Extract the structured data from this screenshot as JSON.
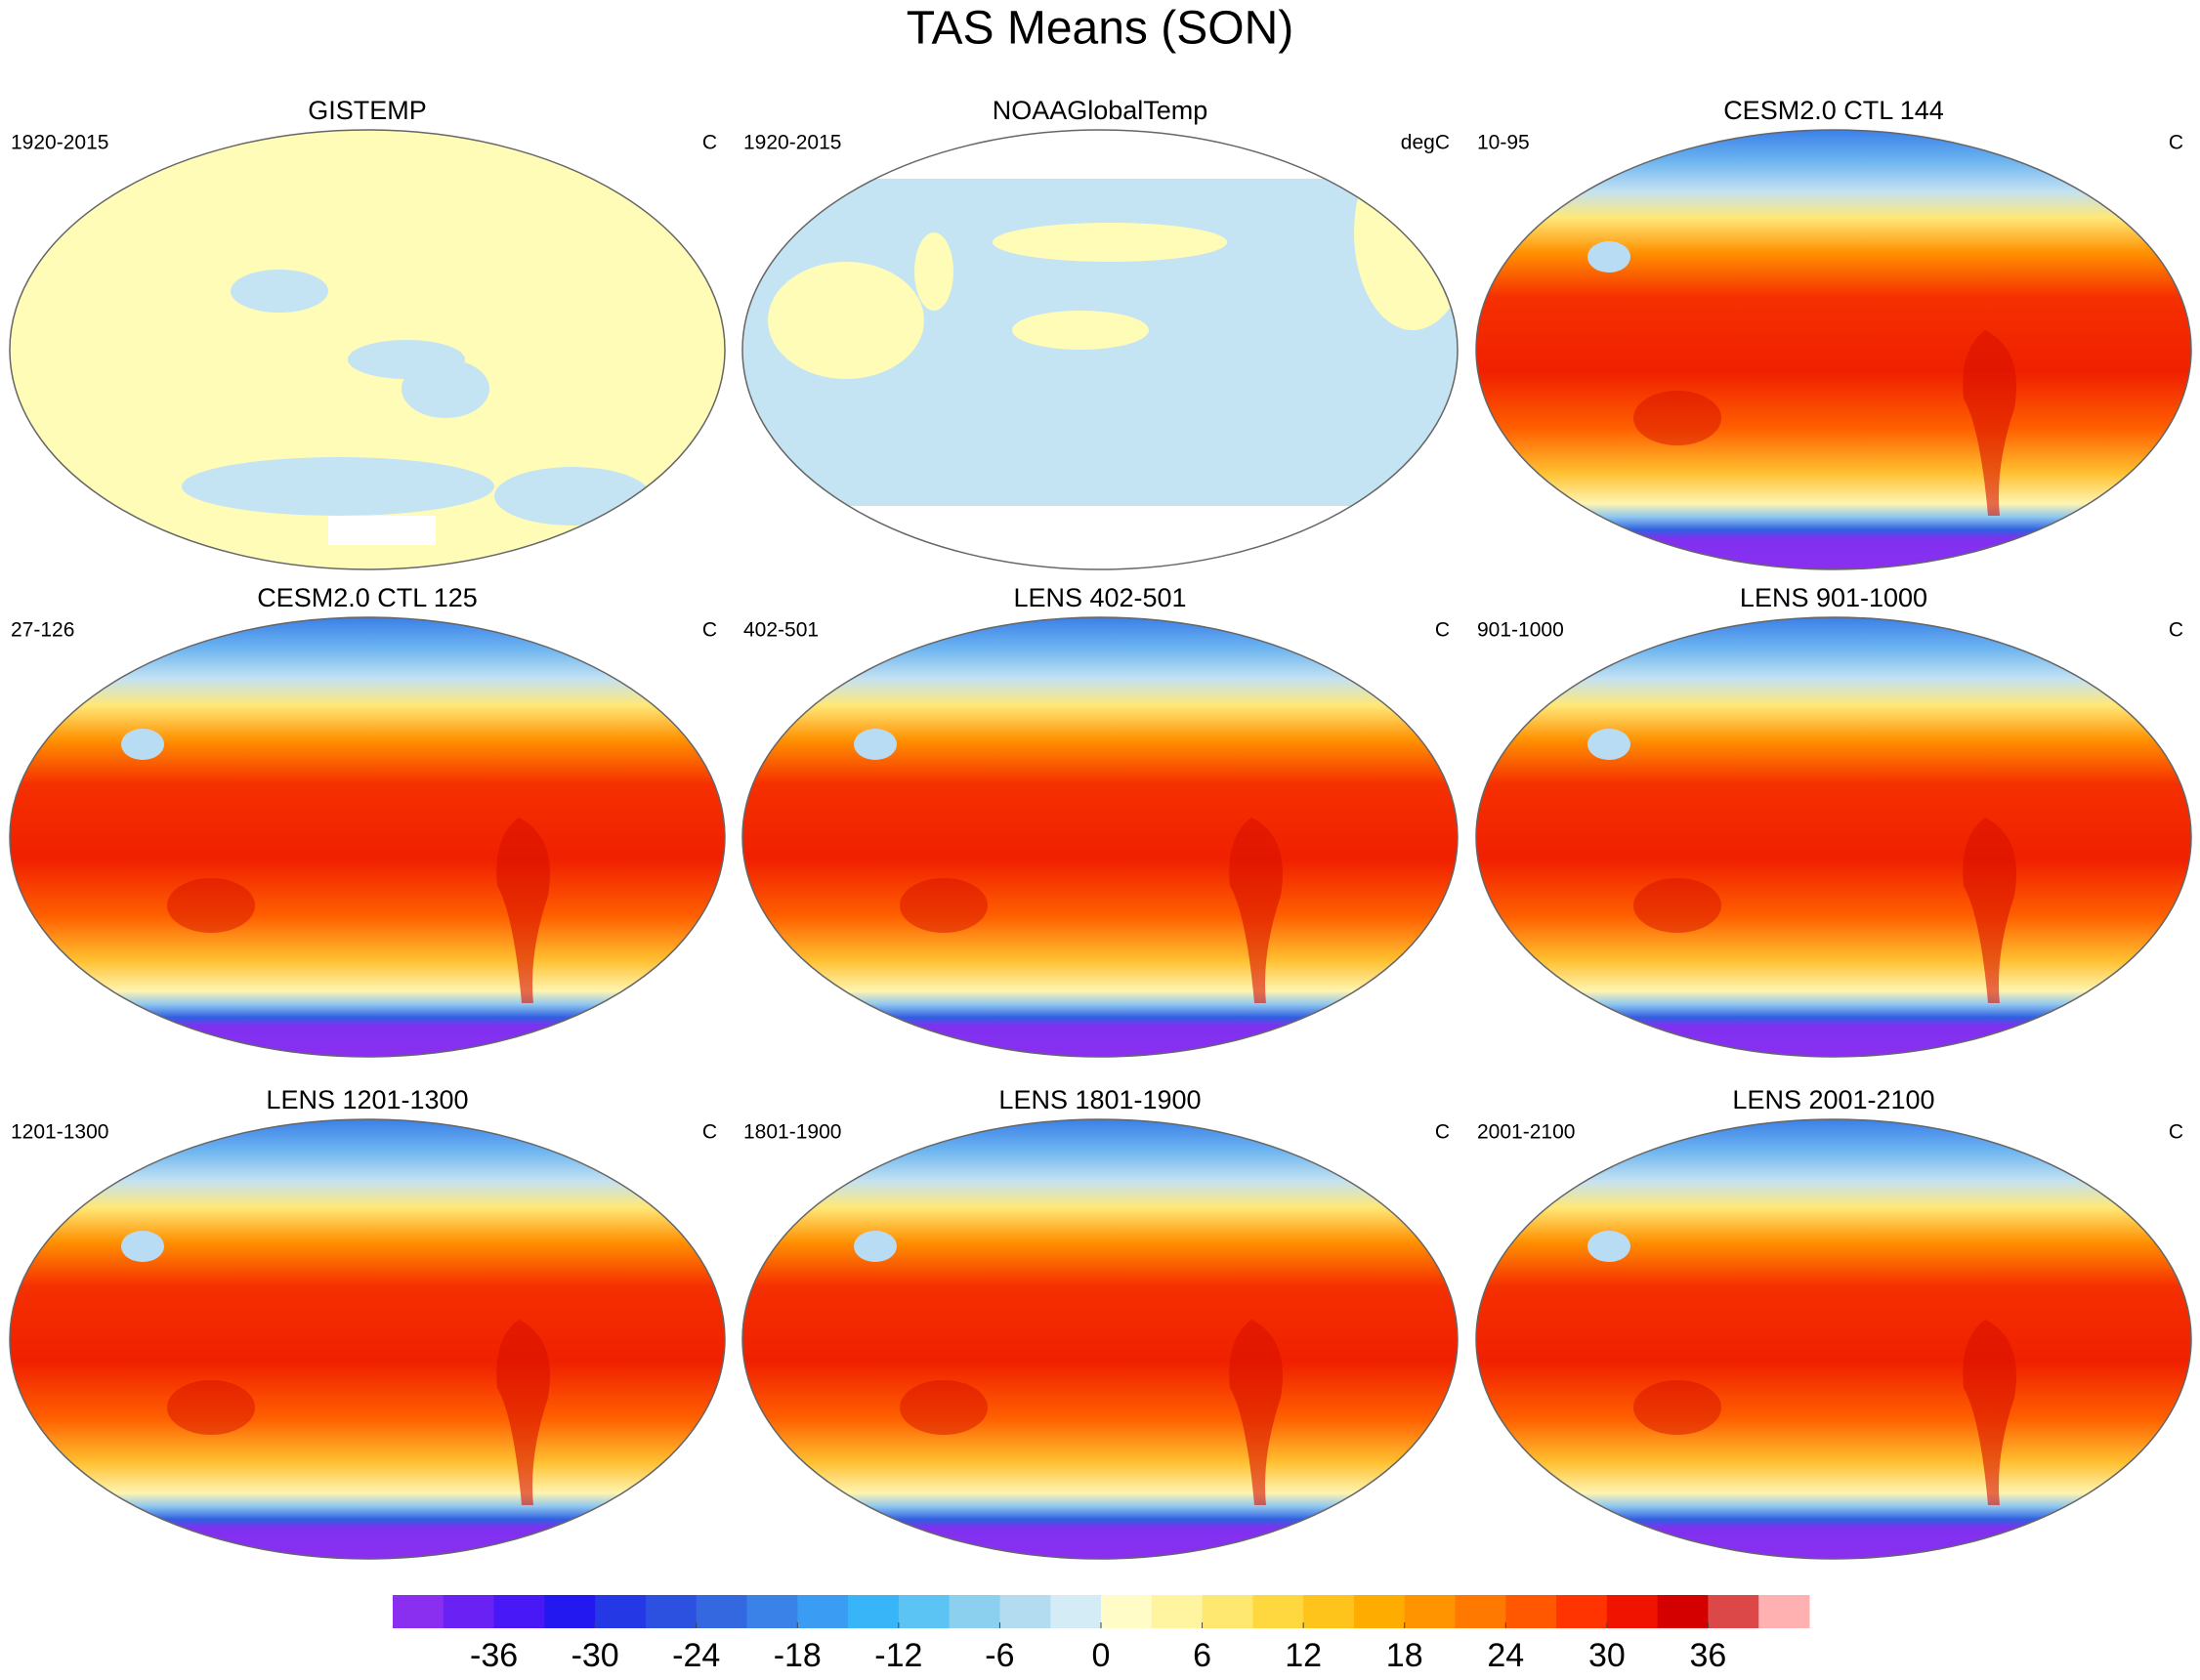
{
  "chart_data": {
    "type": "map-panels",
    "title": "TAS Means (SON)",
    "panels": [
      {
        "title": "GISTEMP",
        "left": "1920-2015",
        "right": "C"
      },
      {
        "title": "NOAAGlobalTemp",
        "left": "1920-2015",
        "right": "degC"
      },
      {
        "title": "CESM2.0 CTL 144",
        "left": "10-95",
        "right": "C"
      },
      {
        "title": "CESM2.0 CTL 125",
        "left": "27-126",
        "right": "C"
      },
      {
        "title": "LENS 402-501",
        "left": "402-501",
        "right": "C"
      },
      {
        "title": "LENS 901-1000",
        "left": "901-1000",
        "right": "C"
      },
      {
        "title": "LENS 1201-1300",
        "left": "1201-1300",
        "right": "C"
      },
      {
        "title": "LENS 1801-1900",
        "left": "1801-1900",
        "right": "C"
      },
      {
        "title": "LENS 2001-2100",
        "left": "2001-2100",
        "right": "C"
      }
    ],
    "colorbar": {
      "lim": [
        -42,
        42
      ],
      "ticks": [
        -36,
        -30,
        -24,
        -18,
        -12,
        -6,
        0,
        6,
        12,
        18,
        24,
        30,
        36
      ],
      "colors": [
        "#8a2ff0",
        "#6a22f4",
        "#4818f6",
        "#2418f0",
        "#2438e6",
        "#2c50e0",
        "#3468e0",
        "#3a82e8",
        "#3a9cf2",
        "#38b4f8",
        "#5cc4f4",
        "#8cd0f0",
        "#b4dcf0",
        "#d4ecf6",
        "#fffcc8",
        "#fff4a0",
        "#ffe870",
        "#ffd840",
        "#ffc41c",
        "#ffac00",
        "#ff9400",
        "#ff7800",
        "#ff5800",
        "#ff3400",
        "#f01400",
        "#d40000",
        "#dc4848",
        "#ffb0b0"
      ]
    }
  }
}
